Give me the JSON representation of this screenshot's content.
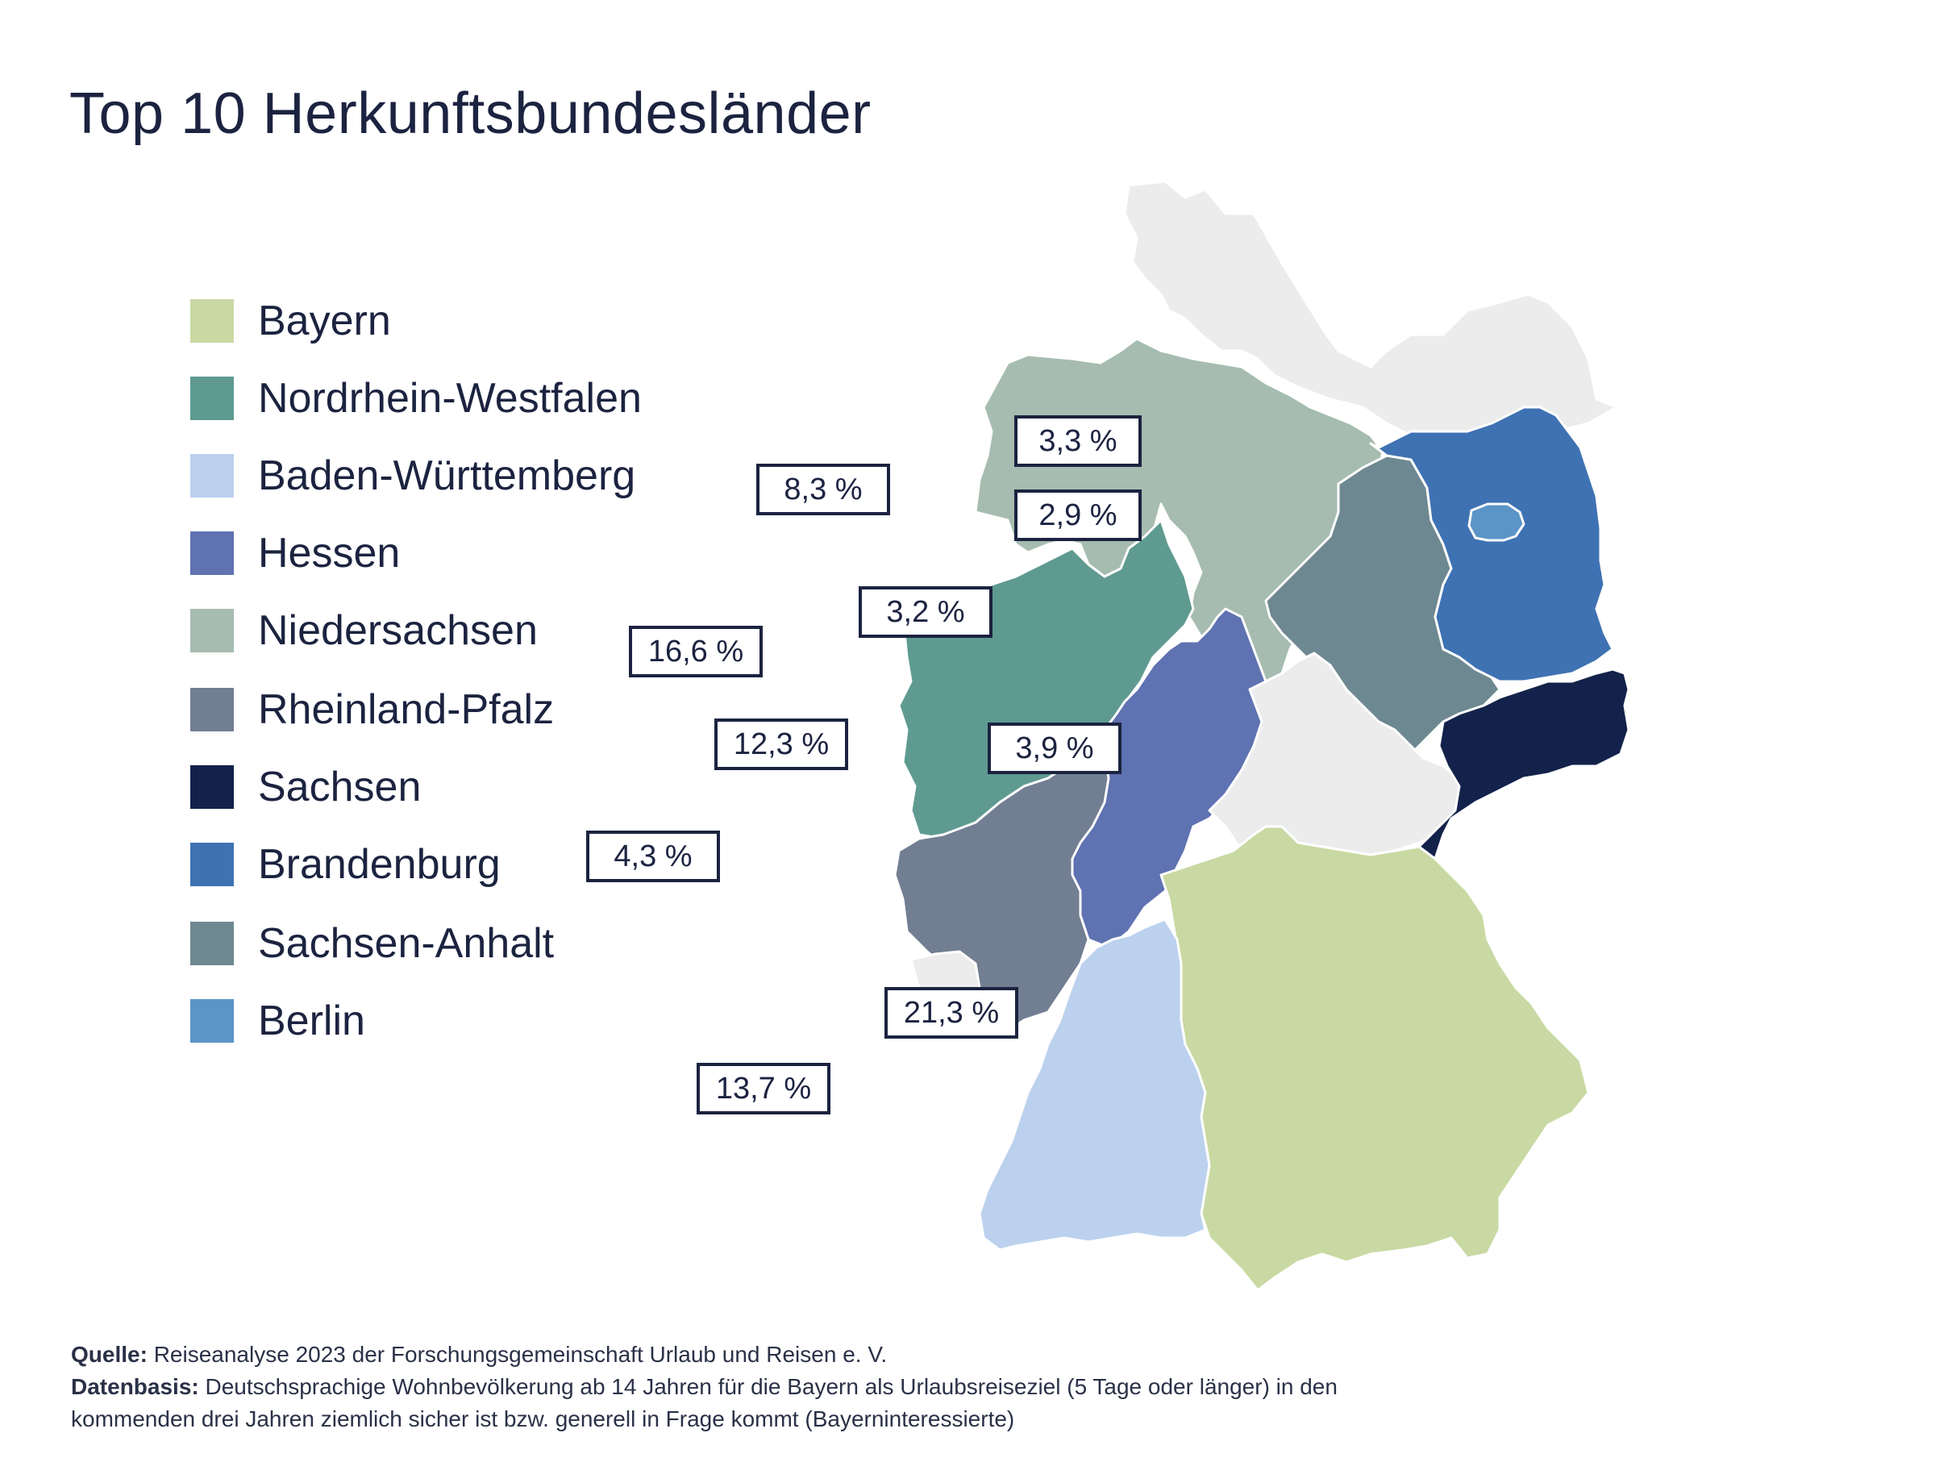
{
  "title": "Top 10 Herkunftsbundesländer",
  "legend": [
    {
      "name": "Bayern",
      "color": "#c9d9a3"
    },
    {
      "name": "Nordrhein-Westfalen",
      "color": "#5f9a91"
    },
    {
      "name": "Baden-Württemberg",
      "color": "#bbd1ee"
    },
    {
      "name": "Hessen",
      "color": "#5f72b1"
    },
    {
      "name": "Niedersachsen",
      "color": "#a6bcb0"
    },
    {
      "name": "Rheinland-Pfalz",
      "color": "#727e92"
    },
    {
      "name": "Sachsen",
      "color": "#13224a"
    },
    {
      "name": "Brandenburg",
      "color": "#3f72b3"
    },
    {
      "name": "Sachsen-Anhalt",
      "color": "#6e8891"
    },
    {
      "name": "Berlin",
      "color": "#5b94c6"
    }
  ],
  "other_color": "#ececec",
  "map_values": {
    "bayern": "21,3 %",
    "nrw": "16,6 %",
    "bw": "13,7 %",
    "hessen": "12,3 %",
    "niedersachsen": "8,3 %",
    "rlp": "4,3 %",
    "sachsen": "3,9 %",
    "brandenburg": "3,3 %",
    "sachsen_anhalt": "3,2 %",
    "berlin": "2,9 %"
  },
  "footer": {
    "source_label": "Quelle:",
    "source_text": " Reiseanalyse 2023 der Forschungsgemeinschaft Urlaub und Reisen e. V.",
    "basis_label": "Datenbasis:",
    "basis_text": " Deutschsprachige Wohnbevölkerung ab 14 Jahren für die Bayern als Urlaubsreiseziel (5 Tage oder länger) in den",
    "basis_text_2": "kommenden drei Jahren ziemlich sicher ist bzw. generell in Frage kommt (Bayerninteressierte)"
  }
}
